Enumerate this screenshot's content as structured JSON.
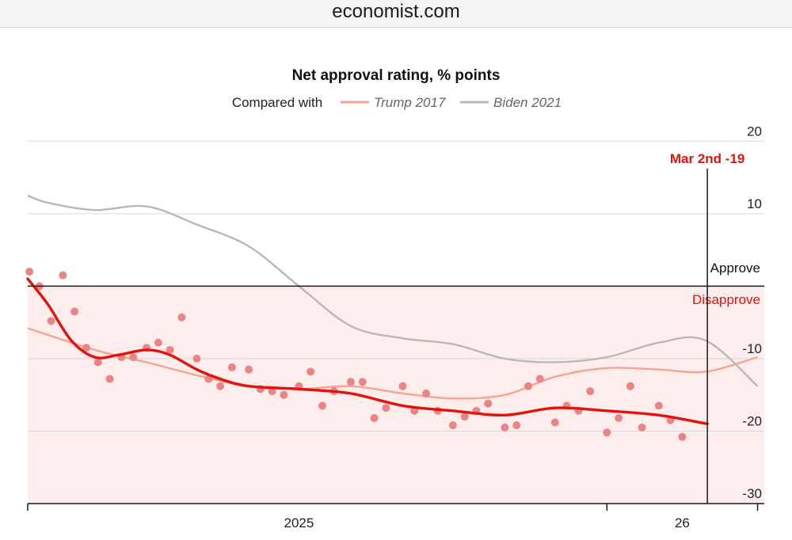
{
  "browser": {
    "url": "economist.com"
  },
  "colors": {
    "current": "#e3120b",
    "current_points": "#eb8585",
    "trump2017": "#f4a490",
    "biden2021": "#b8b8b8",
    "disapprove_fill": "#fdeeed",
    "grid": "#d9d9d9",
    "axis": "#1a1a1a"
  },
  "chart_data": {
    "type": "line",
    "title": "Net approval rating, % points",
    "legend": {
      "prefix": "Compared with",
      "position": "top-center",
      "entries": [
        {
          "key": "trump2017",
          "label": "Trump 2017"
        },
        {
          "key": "biden2021",
          "label": "Biden 2021"
        }
      ]
    },
    "x_axis": {
      "domain": [
        "2025-01-20",
        "2026-04-05"
      ],
      "ticks": [
        {
          "date": "2025-01-01",
          "label": ""
        },
        {
          "date": "2025-07-01",
          "label": "2025"
        },
        {
          "date": "2026-01-01",
          "label": ""
        },
        {
          "date": "2026-02-15",
          "label": "26"
        },
        {
          "date": "2026-04-01",
          "label": ""
        }
      ]
    },
    "y_axis": {
      "ylim": [
        -30,
        22
      ],
      "ticks": [
        20,
        10,
        0,
        -10,
        -20,
        -30
      ],
      "tick_labels": [
        "20",
        "10",
        "",
        "-10",
        "-20",
        "-30"
      ],
      "grid": true
    },
    "zones": {
      "approve_label": "Approve",
      "disapprove_label": "Disapprove"
    },
    "marker": {
      "date": "2026-03-02",
      "label": "Mar 2nd -19",
      "value": -19
    },
    "series": [
      {
        "key": "current",
        "style": "trend",
        "values": [
          {
            "x": "2025-01-20",
            "y": 1
          },
          {
            "x": "2025-02-01",
            "y": -2.5
          },
          {
            "x": "2025-02-15",
            "y": -7.5
          },
          {
            "x": "2025-03-01",
            "y": -9.8
          },
          {
            "x": "2025-03-15",
            "y": -9.5
          },
          {
            "x": "2025-04-01",
            "y": -8.8
          },
          {
            "x": "2025-04-15",
            "y": -9.5
          },
          {
            "x": "2025-05-01",
            "y": -11.5
          },
          {
            "x": "2025-05-15",
            "y": -12.8
          },
          {
            "x": "2025-06-01",
            "y": -13.8
          },
          {
            "x": "2025-07-01",
            "y": -14.2
          },
          {
            "x": "2025-08-01",
            "y": -14.8
          },
          {
            "x": "2025-09-01",
            "y": -16.5
          },
          {
            "x": "2025-10-01",
            "y": -17.2
          },
          {
            "x": "2025-11-01",
            "y": -17.8
          },
          {
            "x": "2025-12-01",
            "y": -16.8
          },
          {
            "x": "2026-01-01",
            "y": -17.2
          },
          {
            "x": "2026-02-01",
            "y": -17.8
          },
          {
            "x": "2026-03-02",
            "y": -19
          }
        ]
      },
      {
        "key": "current_points",
        "style": "dots",
        "values": [
          {
            "x": "2025-01-21",
            "y": 2
          },
          {
            "x": "2025-01-27",
            "y": 0
          },
          {
            "x": "2025-02-03",
            "y": -4.8
          },
          {
            "x": "2025-02-10",
            "y": 1.5
          },
          {
            "x": "2025-02-17",
            "y": -3.5
          },
          {
            "x": "2025-02-24",
            "y": -8.5
          },
          {
            "x": "2025-03-03",
            "y": -10.5
          },
          {
            "x": "2025-03-10",
            "y": -12.8
          },
          {
            "x": "2025-03-17",
            "y": -9.8
          },
          {
            "x": "2025-03-24",
            "y": -9.8
          },
          {
            "x": "2025-04-01",
            "y": -8.5
          },
          {
            "x": "2025-04-08",
            "y": -7.8
          },
          {
            "x": "2025-04-15",
            "y": -8.8
          },
          {
            "x": "2025-04-22",
            "y": -4.3
          },
          {
            "x": "2025-05-01",
            "y": -10
          },
          {
            "x": "2025-05-08",
            "y": -12.8
          },
          {
            "x": "2025-05-15",
            "y": -13.8
          },
          {
            "x": "2025-05-22",
            "y": -11.2
          },
          {
            "x": "2025-06-01",
            "y": -11.5
          },
          {
            "x": "2025-06-08",
            "y": -14.2
          },
          {
            "x": "2025-06-15",
            "y": -14.5
          },
          {
            "x": "2025-06-22",
            "y": -15
          },
          {
            "x": "2025-07-01",
            "y": -13.8
          },
          {
            "x": "2025-07-08",
            "y": -11.8
          },
          {
            "x": "2025-07-15",
            "y": -16.5
          },
          {
            "x": "2025-07-22",
            "y": -14.5
          },
          {
            "x": "2025-08-01",
            "y": -13.2
          },
          {
            "x": "2025-08-08",
            "y": -13.2
          },
          {
            "x": "2025-08-15",
            "y": -18.2
          },
          {
            "x": "2025-08-22",
            "y": -16.8
          },
          {
            "x": "2025-09-01",
            "y": -13.8
          },
          {
            "x": "2025-09-08",
            "y": -17.2
          },
          {
            "x": "2025-09-15",
            "y": -14.8
          },
          {
            "x": "2025-09-22",
            "y": -17.2
          },
          {
            "x": "2025-10-01",
            "y": -19.2
          },
          {
            "x": "2025-10-08",
            "y": -18
          },
          {
            "x": "2025-10-15",
            "y": -17.2
          },
          {
            "x": "2025-10-22",
            "y": -16.2
          },
          {
            "x": "2025-11-01",
            "y": -19.5
          },
          {
            "x": "2025-11-08",
            "y": -19.2
          },
          {
            "x": "2025-11-15",
            "y": -13.8
          },
          {
            "x": "2025-11-22",
            "y": -12.8
          },
          {
            "x": "2025-12-01",
            "y": -18.8
          },
          {
            "x": "2025-12-08",
            "y": -16.5
          },
          {
            "x": "2025-12-15",
            "y": -17.2
          },
          {
            "x": "2025-12-22",
            "y": -14.5
          },
          {
            "x": "2026-01-01",
            "y": -20.2
          },
          {
            "x": "2026-01-08",
            "y": -18.2
          },
          {
            "x": "2026-01-15",
            "y": -13.8
          },
          {
            "x": "2026-01-22",
            "y": -19.5
          },
          {
            "x": "2026-02-01",
            "y": -16.5
          },
          {
            "x": "2026-02-08",
            "y": -18.5
          },
          {
            "x": "2026-02-15",
            "y": -20.8
          }
        ]
      },
      {
        "key": "trump2017",
        "name": "Trump 2017",
        "values": [
          {
            "x": "2025-01-20",
            "y": -5.8
          },
          {
            "x": "2025-03-01",
            "y": -8.8
          },
          {
            "x": "2025-04-01",
            "y": -10.5
          },
          {
            "x": "2025-05-01",
            "y": -12.3
          },
          {
            "x": "2025-06-01",
            "y": -13.8
          },
          {
            "x": "2025-07-01",
            "y": -14.2
          },
          {
            "x": "2025-08-01",
            "y": -13.8
          },
          {
            "x": "2025-09-01",
            "y": -14.8
          },
          {
            "x": "2025-10-01",
            "y": -15.5
          },
          {
            "x": "2025-11-01",
            "y": -15
          },
          {
            "x": "2025-12-01",
            "y": -12.5
          },
          {
            "x": "2026-01-01",
            "y": -11.3
          },
          {
            "x": "2026-02-01",
            "y": -11.5
          },
          {
            "x": "2026-03-01",
            "y": -11.8
          },
          {
            "x": "2026-04-01",
            "y": -9.8
          }
        ]
      },
      {
        "key": "biden2021",
        "name": "Biden 2021",
        "values": [
          {
            "x": "2025-01-20",
            "y": 12.5
          },
          {
            "x": "2025-02-01",
            "y": 11.5
          },
          {
            "x": "2025-03-01",
            "y": 10.5
          },
          {
            "x": "2025-04-01",
            "y": 11
          },
          {
            "x": "2025-05-01",
            "y": 8.5
          },
          {
            "x": "2025-06-01",
            "y": 5.5
          },
          {
            "x": "2025-07-01",
            "y": 0
          },
          {
            "x": "2025-08-01",
            "y": -5.5
          },
          {
            "x": "2025-09-01",
            "y": -7.2
          },
          {
            "x": "2025-10-01",
            "y": -8
          },
          {
            "x": "2025-11-01",
            "y": -10
          },
          {
            "x": "2025-12-01",
            "y": -10.5
          },
          {
            "x": "2026-01-01",
            "y": -9.8
          },
          {
            "x": "2026-02-01",
            "y": -7.8
          },
          {
            "x": "2026-03-01",
            "y": -7.5
          },
          {
            "x": "2026-04-01",
            "y": -13.8
          }
        ]
      }
    ]
  }
}
